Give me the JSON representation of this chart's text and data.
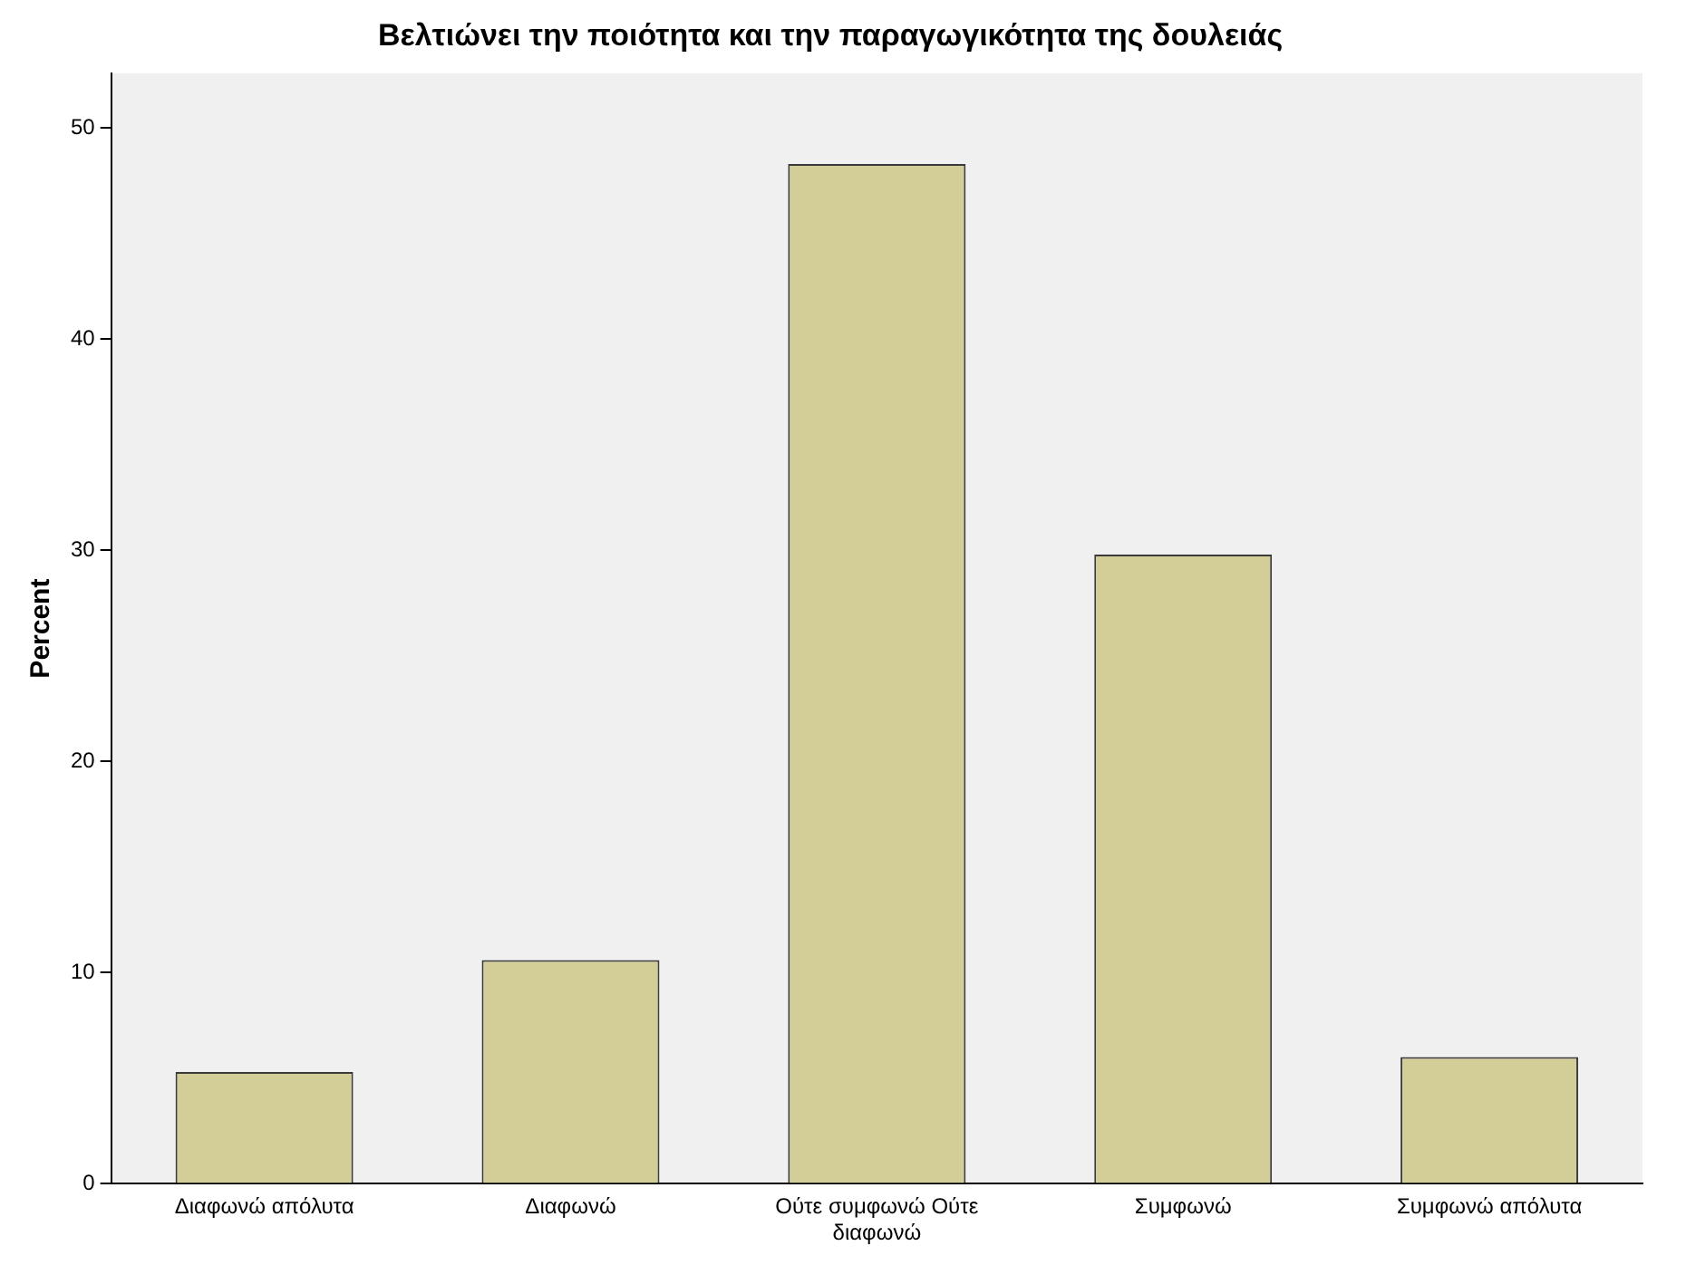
{
  "chart_data": {
    "type": "bar",
    "title": "Βελτιώνει την ποιότητα και την παραγωγικότητα της δουλειάς",
    "ylabel": "Percent",
    "categories": [
      "Διαφωνώ απόλυτα",
      "Διαφωνώ",
      "Ούτε συμφωνώ Ούτε διαφωνώ",
      "Συμφωνώ",
      "Συμφωνώ απόλυτα"
    ],
    "values": [
      5.3,
      10.6,
      48.3,
      29.8,
      6.0
    ],
    "color": "#d3ce98",
    "ylim": [
      0,
      52.6
    ],
    "yticks": [
      0,
      10,
      20,
      30,
      40,
      50
    ],
    "grid": false,
    "legend": false
  }
}
